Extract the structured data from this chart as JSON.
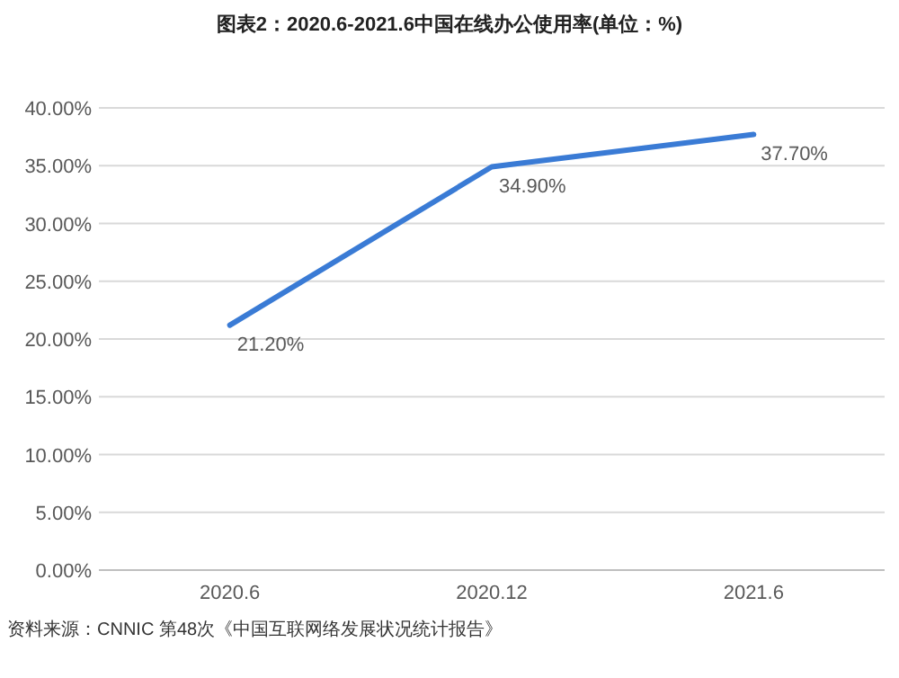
{
  "chart_data": {
    "type": "line",
    "title": "图表2：2020.6-2021.6中国在线办公使用率(单位：%)",
    "categories": [
      "2020.6",
      "2020.12",
      "2021.6"
    ],
    "series": [
      {
        "color": "#3a7bd5",
        "values": [
          21.2,
          34.9,
          37.7
        ],
        "value_labels": [
          "21.20%",
          "34.90%",
          "37.70%"
        ]
      }
    ],
    "ylim": [
      0,
      40
    ],
    "yticks": [
      {
        "value": 0,
        "label": "0.00%"
      },
      {
        "value": 5,
        "label": "5.00%"
      },
      {
        "value": 10,
        "label": "10.00%"
      },
      {
        "value": 15,
        "label": "15.00%"
      },
      {
        "value": 20,
        "label": "20.00%"
      },
      {
        "value": 25,
        "label": "25.00%"
      },
      {
        "value": 30,
        "label": "30.00%"
      },
      {
        "value": 35,
        "label": "35.00%"
      },
      {
        "value": 40,
        "label": "40.00%"
      }
    ],
    "grid": "y",
    "marker": "none",
    "line_style": "solid",
    "annotations": [
      "资料来源：CNNIC 第48次《中国互联网络发展状况统计报告》"
    ]
  }
}
